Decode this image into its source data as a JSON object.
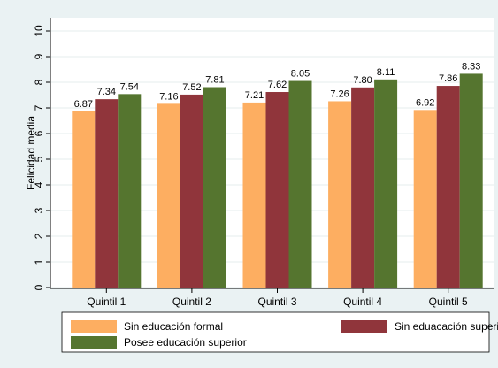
{
  "chart_data": {
    "type": "bar",
    "y_label": "Felicidad media",
    "categories": [
      "Quintil 1",
      "Quintil 2",
      "Quintil 3",
      "Quintil 4",
      "Quintil 5"
    ],
    "series": [
      {
        "name": "Sin educación formal",
        "color": "#fdae61",
        "values": [
          6.87,
          7.16,
          7.21,
          7.26,
          6.92
        ],
        "value_labels": [
          "6.87",
          "7.16",
          "7.21",
          "7.26",
          "6.92"
        ]
      },
      {
        "name": "Sin eduacación superior",
        "color": "#90353b",
        "values": [
          7.34,
          7.52,
          7.62,
          7.8,
          7.86
        ],
        "value_labels": [
          "7.34",
          "7.52",
          "7.62",
          "7.80",
          "7.86"
        ]
      },
      {
        "name": "Posee educación superior",
        "color": "#55752f",
        "values": [
          7.54,
          7.81,
          8.05,
          8.11,
          8.33
        ],
        "value_labels": [
          "7.54",
          "7.81",
          "8.05",
          "8.11",
          "8.33"
        ]
      }
    ],
    "ylim": [
      0,
      10
    ],
    "yticks": [
      0,
      1,
      2,
      3,
      4,
      5,
      6,
      7,
      8,
      9,
      10
    ],
    "grid": true
  }
}
